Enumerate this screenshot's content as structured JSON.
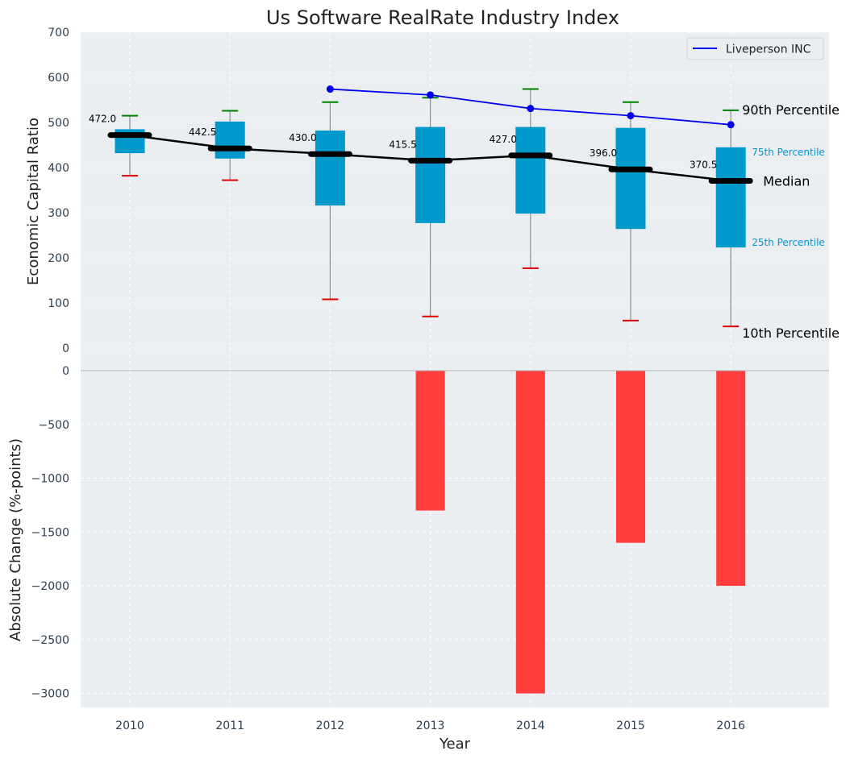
{
  "chart_data": [
    {
      "type": "box",
      "title": "Us Software RealRate Industry Index",
      "xlabel": "",
      "ylabel": "Economic Capital Ratio",
      "ylim": [
        0,
        700
      ],
      "yticks": [
        0,
        100,
        200,
        300,
        400,
        500,
        600,
        700
      ],
      "categories": [
        "2010",
        "2011",
        "2012",
        "2013",
        "2014",
        "2015",
        "2016"
      ],
      "boxes": [
        {
          "year": "2010",
          "p10": 382,
          "p25": 432,
          "median": 472.0,
          "p75": 485,
          "p90": 515
        },
        {
          "year": "2011",
          "p10": 372,
          "p25": 420,
          "median": 442.5,
          "p75": 502,
          "p90": 526
        },
        {
          "year": "2012",
          "p10": 108,
          "p25": 316,
          "median": 430.0,
          "p75": 482,
          "p90": 545
        },
        {
          "year": "2013",
          "p10": 70,
          "p25": 277,
          "median": 415.5,
          "p75": 490,
          "p90": 555
        },
        {
          "year": "2014",
          "p10": 177,
          "p25": 298,
          "median": 427.0,
          "p75": 490,
          "p90": 574
        },
        {
          "year": "2015",
          "p10": 61,
          "p25": 264,
          "median": 396.0,
          "p75": 488,
          "p90": 545
        },
        {
          "year": "2016",
          "p10": 48,
          "p25": 223,
          "median": 370.5,
          "p75": 445,
          "p90": 527
        }
      ],
      "median_labels": [
        "472.0",
        "442.5",
        "430.0",
        "415.5",
        "427.0",
        "396.0",
        "370.5"
      ],
      "series": [
        {
          "name": "Liveperson INC",
          "color": "#0000ee",
          "x": [
            "2012",
            "2013",
            "2014",
            "2015",
            "2016"
          ],
          "values": [
            574,
            561,
            531,
            515,
            495
          ]
        }
      ],
      "legend": {
        "position": "top-right",
        "entries": [
          "Liveperson INC"
        ]
      },
      "annotations": {
        "p90": "90th Percentile",
        "p75": "75th Percentile",
        "median": "Median",
        "p25": "25th Percentile",
        "p10": "10th Percentile"
      },
      "colors": {
        "box": "#0099cc",
        "p90_cap": "#008000",
        "p10_cap": "#dd0000",
        "median": "#000000",
        "background": "#eaeef0"
      }
    },
    {
      "type": "bar",
      "ylabel": "Absolute Change (%-points)",
      "xlabel": "Year",
      "ylim": [
        -3130,
        0
      ],
      "yticks": [
        0,
        -500,
        -1000,
        -1500,
        -2000,
        -2500,
        -3000
      ],
      "categories": [
        "2010",
        "2011",
        "2012",
        "2013",
        "2014",
        "2015",
        "2016"
      ],
      "values": [
        0,
        0,
        0,
        -1300,
        -3000,
        -1600,
        -2000
      ],
      "color": "#ff3d3d"
    }
  ]
}
